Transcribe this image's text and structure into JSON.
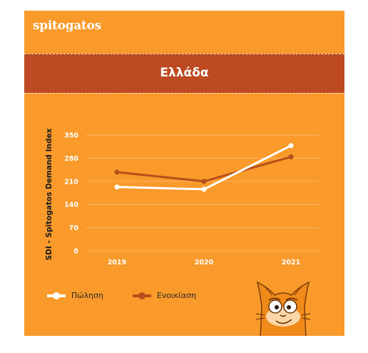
{
  "brand": {
    "logo": "spitogatos"
  },
  "banner": {
    "title": "Ελλάδα"
  },
  "colors": {
    "background": "#f99a2a",
    "banner": "#bd4a22",
    "sale": "#ffffff",
    "rent": "#b5501c",
    "grid": "#fbb565",
    "tick": "#ffffff"
  },
  "legend": [
    {
      "key": "sale",
      "label": "Πώληση"
    },
    {
      "key": "rent",
      "label": "Ενοικίαση"
    }
  ],
  "chart_data": {
    "type": "line",
    "title": "",
    "xlabel": "",
    "ylabel": "SDI - Spitogatos Demand Index",
    "categories": [
      "2019",
      "2020",
      "2021"
    ],
    "yticks": [
      0,
      70,
      140,
      210,
      280,
      350
    ],
    "ylim": [
      0,
      350
    ],
    "grid": true,
    "legend_position": "bottom-left",
    "series": [
      {
        "key": "sale",
        "name": "Πώληση",
        "values": [
          193,
          186,
          318
        ]
      },
      {
        "key": "rent",
        "name": "Ενοικίαση",
        "values": [
          238,
          210,
          284
        ]
      }
    ]
  },
  "mascot": {
    "icon": "cat-mascot-icon"
  }
}
